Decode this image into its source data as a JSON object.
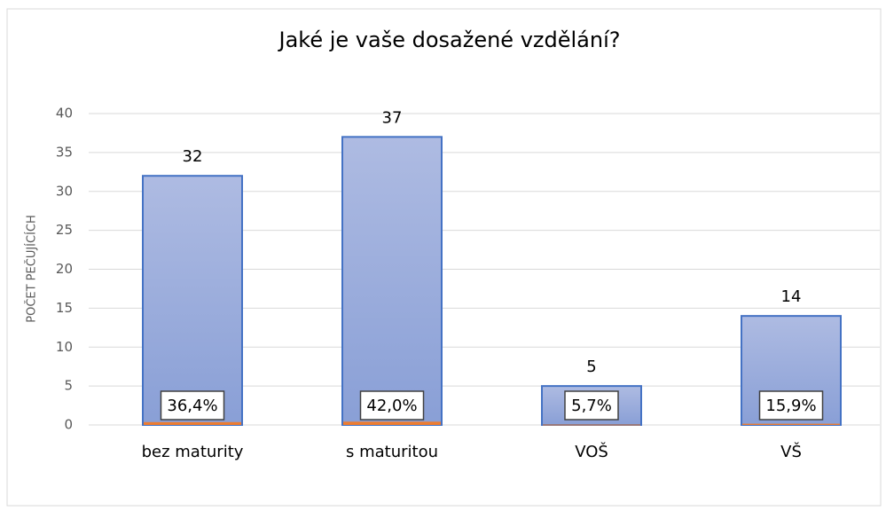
{
  "chart_data": {
    "type": "bar",
    "title": "Jaké je vaše dosažené vzdělání?",
    "y_label": "POČET PEČUJÍCÍCH",
    "categories": [
      "bez maturity",
      "s maturitou",
      "VOŠ",
      "VŠ"
    ],
    "series": [
      {
        "color": "#4472c4",
        "values": [
          32,
          37,
          5,
          14
        ]
      },
      {
        "color": "#ed7d31",
        "values": [
          0.364,
          0.42,
          0.057,
          0.159
        ],
        "value_labels": [
          "36,4%",
          "42,0%",
          "5,7%",
          "15,9%"
        ]
      }
    ],
    "ylim": [
      0,
      40
    ],
    "yticks": [
      0,
      5,
      10,
      15,
      20,
      25,
      30,
      35,
      40
    ],
    "grid": true
  }
}
